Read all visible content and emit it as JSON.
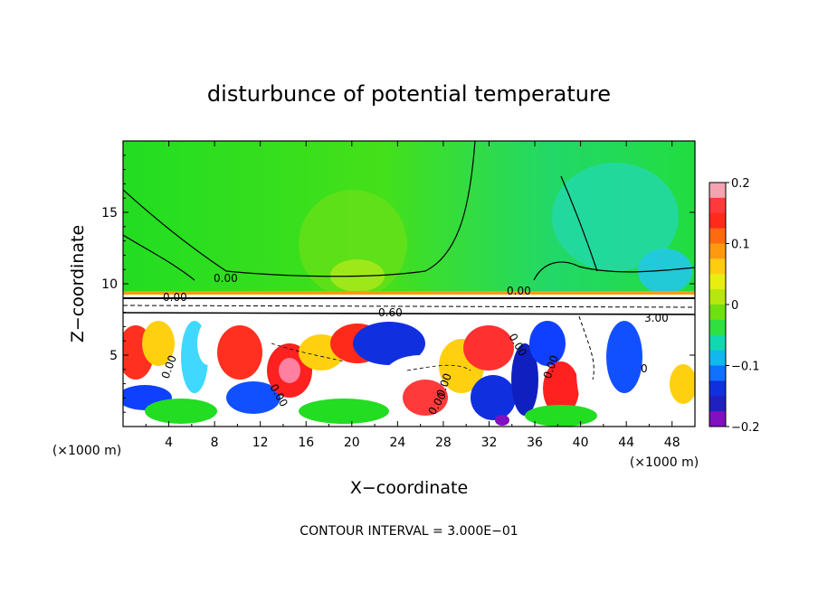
{
  "chart_data": {
    "type": "heatmap",
    "title": "disturbunce of potential temperature",
    "xlabel": "X−coordinate",
    "ylabel": "Z−coordinate",
    "x_unit_left": "(×1000 m)",
    "x_unit_right": "(×1000 m)",
    "xlim": [
      0,
      50
    ],
    "ylim": [
      0,
      20
    ],
    "x_ticks": [
      "4",
      "8",
      "12",
      "16",
      "20",
      "24",
      "28",
      "32",
      "36",
      "40",
      "44",
      "48"
    ],
    "y_ticks": [
      "5",
      "10",
      "15"
    ],
    "colorbar": {
      "range": [
        -0.2,
        0.2
      ],
      "tick_labels": [
        "0.2",
        "0.1",
        "0",
        "−0.1",
        "−0.2"
      ],
      "colors": [
        "#f5a3b0",
        "#ff3a3a",
        "#ff2a1a",
        "#ff6a10",
        "#ff9a10",
        "#ffcc10",
        "#e8ee10",
        "#b6e810",
        "#6ee010",
        "#2ee040",
        "#10d8b0",
        "#10b8ee",
        "#1070ff",
        "#1030e0",
        "#2020c0",
        "#8010c0"
      ]
    },
    "contour_labels": [
      "0.00",
      "0.00",
      "0.00",
      "0.60",
      "0.00",
      "0.00",
      "0.00",
      "0.00",
      "0.00",
      "0.00",
      "3.00",
      "0"
    ],
    "footer": "CONTOUR INTERVAL = 3.000E−01",
    "legend_position": "right"
  }
}
